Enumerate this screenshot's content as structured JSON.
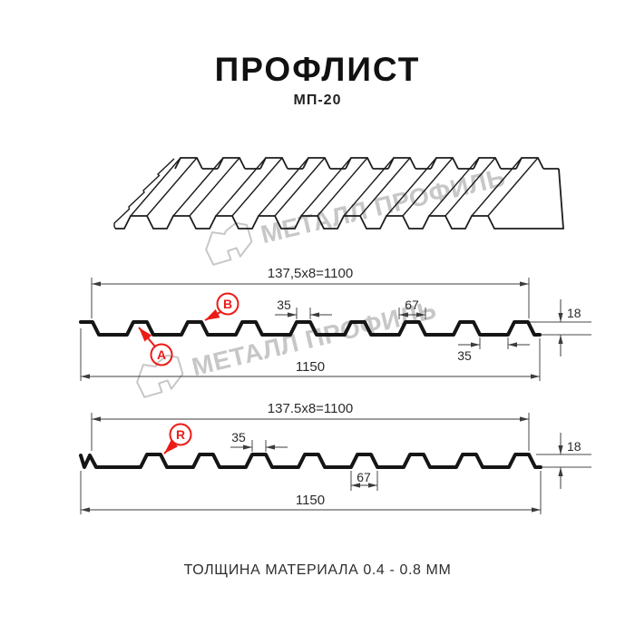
{
  "header": {
    "title": "ПРОФЛИСТ",
    "subtitle": "МП-20"
  },
  "footer": {
    "caption": "ТОЛЩИНА МАТЕРИАЛА 0.4 - 0.8 ММ"
  },
  "watermark": {
    "text": "МЕТАЛЛ ПРОФИЛЬ"
  },
  "colors": {
    "accent_red": "#ed1b17",
    "line_black": "#151515",
    "dim_gray": "#3c3c3c",
    "watermark_gray": "#c7c7c7"
  },
  "profile_top": {
    "pitch_dim": "137,5x8=1100",
    "overall_width": "1150",
    "rib_top_width": "35",
    "rib_bottom_width": "67",
    "profile_height": "18",
    "valley_width": "35",
    "marker_a": "A",
    "marker_b": "B"
  },
  "profile_bottom": {
    "pitch_dim": "137.5x8=1100",
    "overall_width": "1150",
    "rib_top_width": "35",
    "rib_bottom_width": "67",
    "profile_height": "18",
    "marker_r": "R"
  }
}
